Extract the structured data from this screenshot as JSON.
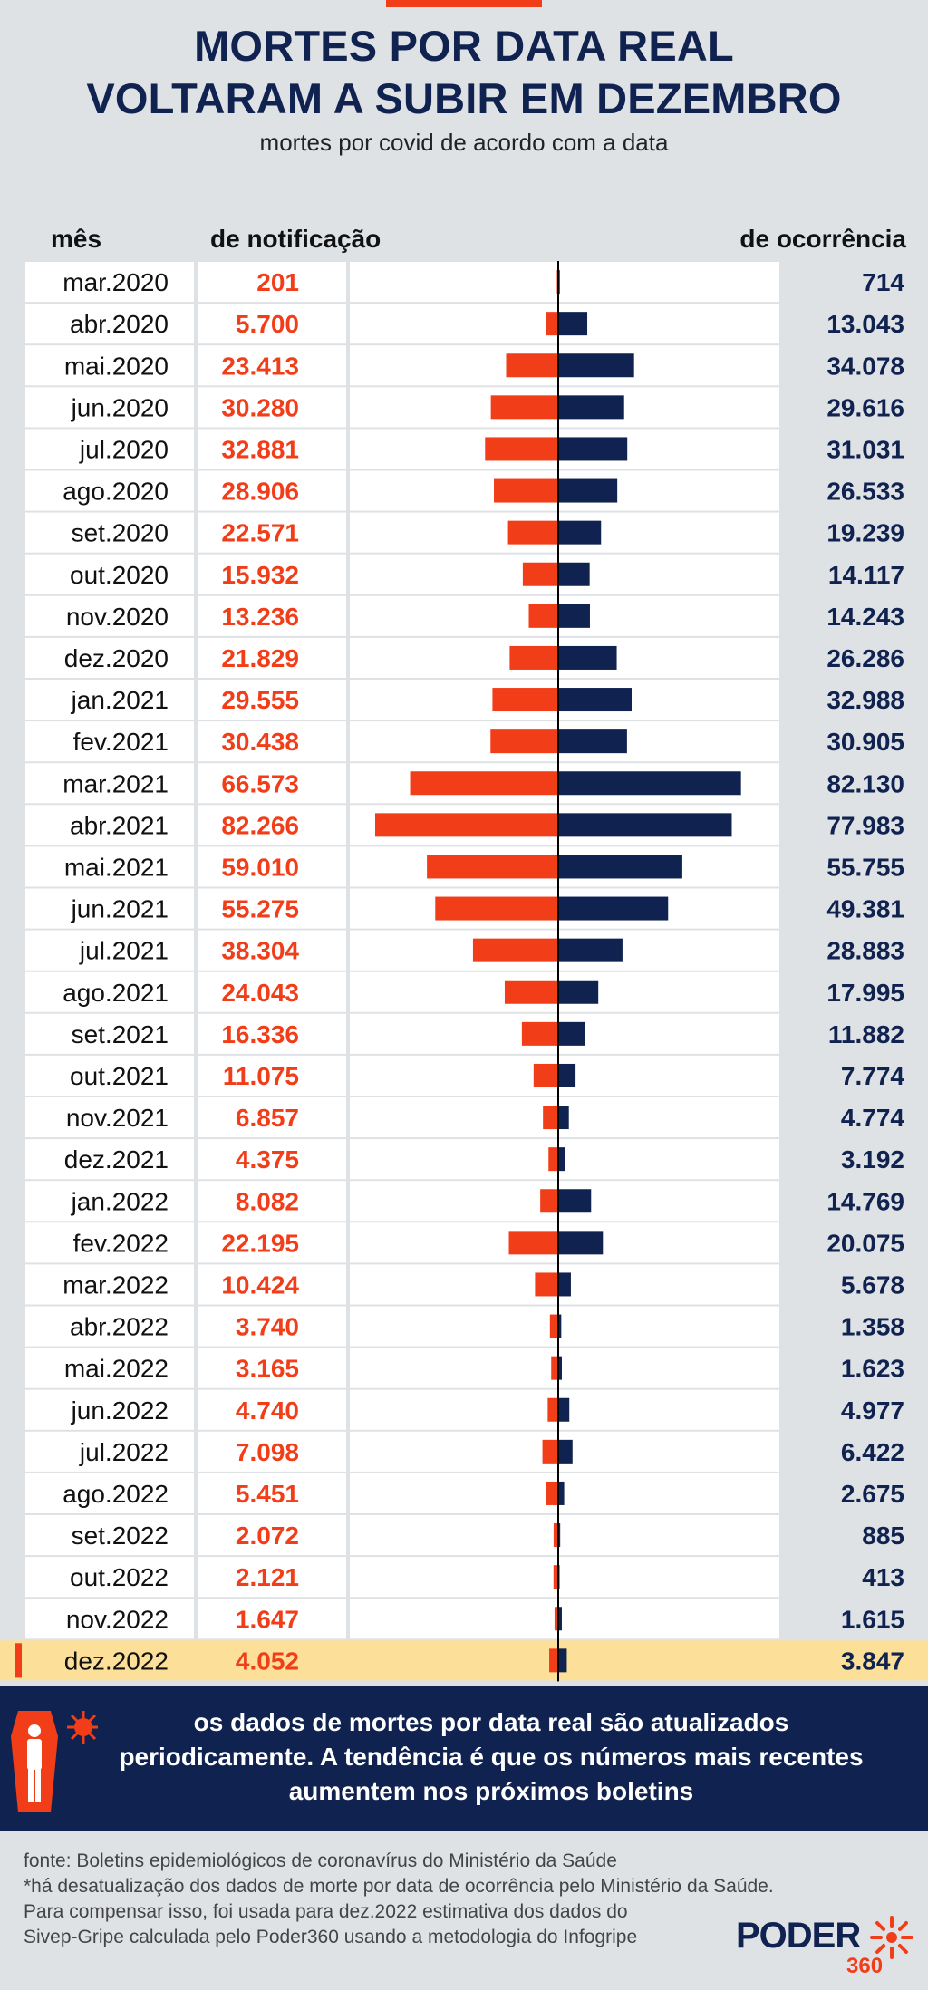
{
  "header": {
    "title_line1": "MORTES POR DATA REAL",
    "title_line2": "VOLTARAM A SUBIR EM DEZEMBRO",
    "subtitle": "mortes por covid de acordo com a data"
  },
  "columns": {
    "month": "mês",
    "notification": "de notificação",
    "occurrence": "de ocorrência"
  },
  "colors": {
    "notification": "#f23d19",
    "occurrence": "#10224f",
    "highlight": "#fce09a",
    "navy": "#10224f"
  },
  "chart_data": {
    "type": "bar",
    "orientation": "horizontal-diverging",
    "categories": [
      "mar.2020",
      "abr.2020",
      "mai.2020",
      "jun.2020",
      "jul.2020",
      "ago.2020",
      "set.2020",
      "out.2020",
      "nov.2020",
      "dez.2020",
      "jan.2021",
      "fev.2021",
      "mar.2021",
      "abr.2021",
      "mai.2021",
      "jun.2021",
      "jul.2021",
      "ago.2021",
      "set.2021",
      "out.2021",
      "nov.2021",
      "dez.2021",
      "jan.2022",
      "fev.2022",
      "mar.2022",
      "abr.2022",
      "mai.2022",
      "jun.2022",
      "jul.2022",
      "ago.2022",
      "set.2022",
      "out.2022",
      "nov.2022",
      "dez.2022"
    ],
    "series": [
      {
        "name": "de notificação",
        "values": [
          201,
          5700,
          23413,
          30280,
          32881,
          28906,
          22571,
          15932,
          13236,
          21829,
          29555,
          30438,
          66573,
          82266,
          59010,
          55275,
          38304,
          24043,
          16336,
          11075,
          6857,
          4375,
          8082,
          22195,
          10424,
          3740,
          3165,
          4740,
          7098,
          5451,
          2072,
          2121,
          1647,
          4052
        ],
        "labels": [
          "201",
          "5.700",
          "23.413",
          "30.280",
          "32.881",
          "28.906",
          "22.571",
          "15.932",
          "13.236",
          "21.829",
          "29.555",
          "30.438",
          "66.573",
          "82.266",
          "59.010",
          "55.275",
          "38.304",
          "24.043",
          "16.336",
          "11.075",
          "6.857",
          "4.375",
          "8.082",
          "22.195",
          "10.424",
          "3.740",
          "3.165",
          "4.740",
          "7.098",
          "5.451",
          "2.072",
          "2.121",
          "1.647",
          "4.052"
        ]
      },
      {
        "name": "de ocorrência",
        "values": [
          714,
          13043,
          34078,
          29616,
          31031,
          26533,
          19239,
          14117,
          14243,
          26286,
          32988,
          30905,
          82130,
          77983,
          55755,
          49381,
          28883,
          17995,
          11882,
          7774,
          4774,
          3192,
          14769,
          20075,
          5678,
          1358,
          1623,
          4977,
          6422,
          2675,
          885,
          413,
          1615,
          3847
        ],
        "labels": [
          "714",
          "13.043",
          "34.078",
          "29.616",
          "31.031",
          "26.533",
          "19.239",
          "14.117",
          "14.243",
          "26.286",
          "32.988",
          "30.905",
          "82.130",
          "77.983",
          "55.755",
          "49.381",
          "28.883",
          "17.995",
          "11.882",
          "7.774",
          "4.774",
          "3.192",
          "14.769",
          "20.075",
          "5.678",
          "1.358",
          "1.623",
          "4.977",
          "6.422",
          "2.675",
          "885",
          "413",
          "1.615",
          "3.847"
        ]
      }
    ],
    "highlight_category": "dez.2022"
  },
  "footer": {
    "banner_line1": "os dados de mortes por data real são atualizados",
    "banner_line2": "periodicamente. A tendência é que os números mais recentes",
    "banner_line3": "aumentem nos próximos boletins",
    "fonte_line1": "fonte: Boletins epidemiológicos de coronavírus do Ministério da Saúde",
    "fonte_line2": "*há desatualização dos dados de morte por data de ocorrência pelo Ministério da Saúde.",
    "fonte_line3": "Para compensar isso, foi usada para dez.2022 estimativa dos dados do",
    "fonte_line4": "Sivep-Gripe calculada pelo Poder360 usando a metodologia do Infogripe"
  },
  "logo": {
    "word": "PODER",
    "number": "360"
  }
}
